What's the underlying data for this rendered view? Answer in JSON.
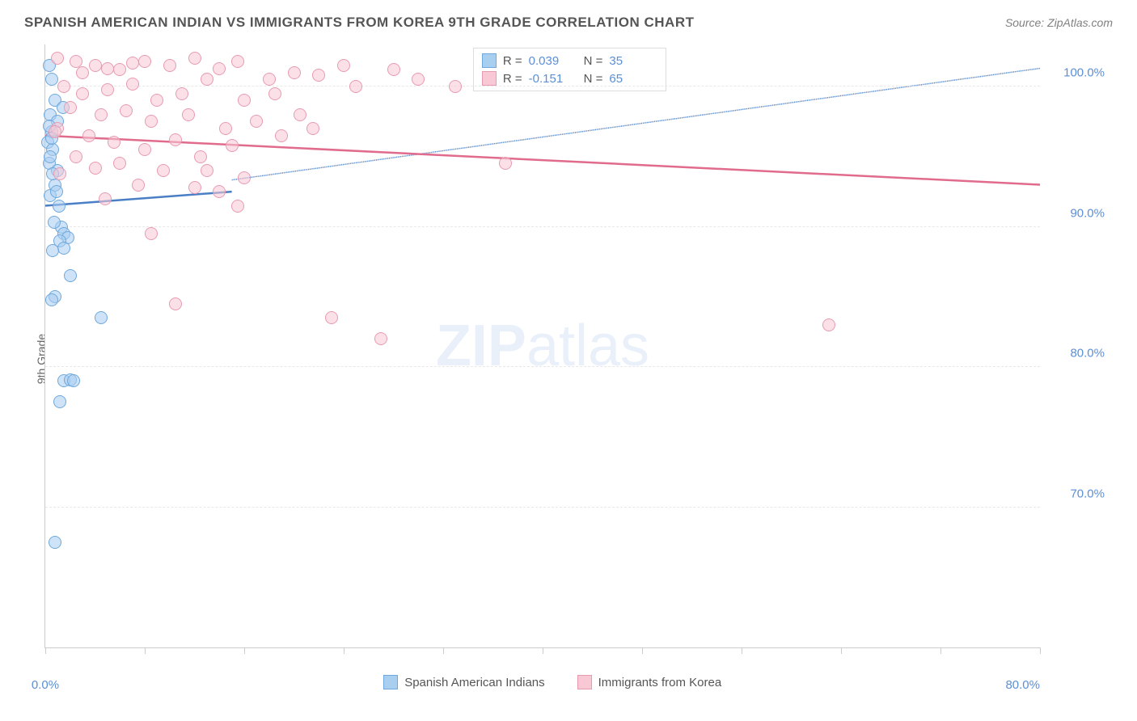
{
  "title": "SPANISH AMERICAN INDIAN VS IMMIGRANTS FROM KOREA 9TH GRADE CORRELATION CHART",
  "source": "Source: ZipAtlas.com",
  "ylabel": "9th Grade",
  "watermark_bold": "ZIP",
  "watermark_light": "atlas",
  "chart": {
    "type": "scatter",
    "xlim": [
      0,
      80
    ],
    "ylim": [
      60,
      103
    ],
    "xtick_positions": [
      0,
      8,
      16,
      24,
      32,
      40,
      48,
      56,
      64,
      72,
      80
    ],
    "xtick_labels": {
      "0": "0.0%",
      "80": "80.0%"
    },
    "ytick_positions": [
      70,
      80,
      90,
      100
    ],
    "ytick_labels": [
      "70.0%",
      "80.0%",
      "90.0%",
      "100.0%"
    ],
    "grid_color": "#dddddd",
    "background_color": "#ffffff",
    "series": [
      {
        "key": "series_a",
        "label": "Spanish American Indians",
        "marker_color": "#a8cef0",
        "marker_border": "#6fa8dc",
        "line_color": "#4a7fc5",
        "r_value": "0.039",
        "n_value": "35",
        "marker_radius": 8,
        "trend": {
          "x1": 0,
          "y1": 91.5,
          "x2": 15,
          "y2": 92.5,
          "solid_until_x": 15,
          "ext_x2": 80,
          "ext_y2": 101.3
        },
        "points": [
          [
            0.3,
            101.5
          ],
          [
            0.5,
            100.5
          ],
          [
            0.8,
            99.0
          ],
          [
            0.4,
            98.0
          ],
          [
            1.0,
            97.5
          ],
          [
            0.5,
            96.8
          ],
          [
            0.2,
            96.0
          ],
          [
            0.6,
            95.5
          ],
          [
            0.3,
            94.5
          ],
          [
            1.0,
            94.0
          ],
          [
            0.8,
            93.0
          ],
          [
            0.4,
            92.2
          ],
          [
            1.3,
            90.0
          ],
          [
            1.5,
            89.5
          ],
          [
            1.8,
            89.2
          ],
          [
            1.2,
            89.0
          ],
          [
            1.5,
            88.5
          ],
          [
            0.6,
            88.3
          ],
          [
            2.0,
            86.5
          ],
          [
            0.8,
            85.0
          ],
          [
            0.5,
            84.8
          ],
          [
            4.5,
            83.5
          ],
          [
            1.5,
            79.0
          ],
          [
            2.0,
            79.1
          ],
          [
            2.3,
            79.0
          ],
          [
            1.2,
            77.5
          ],
          [
            0.8,
            67.5
          ],
          [
            0.3,
            97.2
          ],
          [
            0.4,
            95.0
          ],
          [
            0.6,
            93.8
          ],
          [
            0.9,
            92.5
          ],
          [
            1.1,
            91.5
          ],
          [
            0.7,
            90.3
          ],
          [
            0.5,
            96.3
          ],
          [
            1.4,
            98.5
          ]
        ]
      },
      {
        "key": "series_b",
        "label": "Immigrants from Korea",
        "marker_color": "#f8c8d4",
        "marker_border": "#e89bb0",
        "line_color": "#e06b8c",
        "r_value": "-0.151",
        "n_value": "65",
        "marker_radius": 8,
        "trend": {
          "x1": 0,
          "y1": 96.5,
          "x2": 80,
          "y2": 93.0,
          "solid_until_x": 80
        },
        "points": [
          [
            1.0,
            102.0
          ],
          [
            2.5,
            101.8
          ],
          [
            4.0,
            101.5
          ],
          [
            6.0,
            101.2
          ],
          [
            8.0,
            101.8
          ],
          [
            10.0,
            101.5
          ],
          [
            12.0,
            102.0
          ],
          [
            14.0,
            101.3
          ],
          [
            15.5,
            101.8
          ],
          [
            18.0,
            100.5
          ],
          [
            20.0,
            101.0
          ],
          [
            22.0,
            100.8
          ],
          [
            24.0,
            101.5
          ],
          [
            25.0,
            100.0
          ],
          [
            28.0,
            101.2
          ],
          [
            30.0,
            100.5
          ],
          [
            33.0,
            100.0
          ],
          [
            1.5,
            100.0
          ],
          [
            3.0,
            99.5
          ],
          [
            5.0,
            99.8
          ],
          [
            7.0,
            100.2
          ],
          [
            9.0,
            99.0
          ],
          [
            11.0,
            99.5
          ],
          [
            13.0,
            100.5
          ],
          [
            2.0,
            98.5
          ],
          [
            4.5,
            98.0
          ],
          [
            6.5,
            98.3
          ],
          [
            8.5,
            97.5
          ],
          [
            11.5,
            98.0
          ],
          [
            14.5,
            97.0
          ],
          [
            17.0,
            97.5
          ],
          [
            19.0,
            96.5
          ],
          [
            1.0,
            97.0
          ],
          [
            3.5,
            96.5
          ],
          [
            5.5,
            96.0
          ],
          [
            8.0,
            95.5
          ],
          [
            10.5,
            96.2
          ],
          [
            12.5,
            95.0
          ],
          [
            15.0,
            95.8
          ],
          [
            2.5,
            95.0
          ],
          [
            6.0,
            94.5
          ],
          [
            13.0,
            94.0
          ],
          [
            16.0,
            93.5
          ],
          [
            0.8,
            96.8
          ],
          [
            4.0,
            94.2
          ],
          [
            7.5,
            93.0
          ],
          [
            1.2,
            93.8
          ],
          [
            14.0,
            92.5
          ],
          [
            15.5,
            91.5
          ],
          [
            8.5,
            89.5
          ],
          [
            37.0,
            94.5
          ],
          [
            23.0,
            83.5
          ],
          [
            27.0,
            82.0
          ],
          [
            10.5,
            84.5
          ],
          [
            63.0,
            83.0
          ],
          [
            3.0,
            101.0
          ],
          [
            5.0,
            101.3
          ],
          [
            7.0,
            101.7
          ],
          [
            16.0,
            99.0
          ],
          [
            20.5,
            98.0
          ],
          [
            18.5,
            99.5
          ],
          [
            21.5,
            97.0
          ],
          [
            9.5,
            94.0
          ],
          [
            12.0,
            92.8
          ],
          [
            4.8,
            92.0
          ]
        ]
      }
    ]
  },
  "legend_box": {
    "r_label": "R =",
    "n_label": "N ="
  }
}
